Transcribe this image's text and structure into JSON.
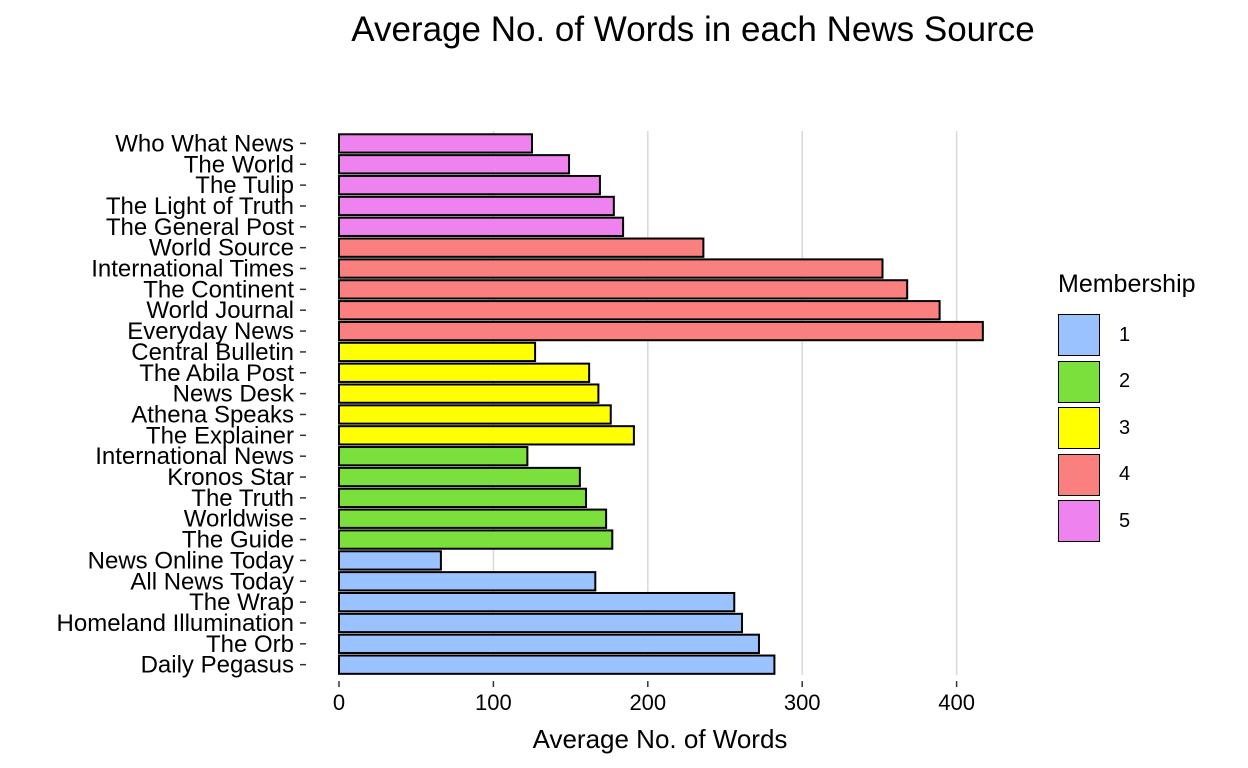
{
  "chart_data": {
    "type": "bar",
    "orientation": "horizontal",
    "title": "Average No. of Words in each News Source",
    "xlabel": "Average No. of Words",
    "ylabel": "",
    "xlim": [
      0,
      420
    ],
    "xticks": [
      "0",
      "100",
      "200",
      "300",
      "400"
    ],
    "grid": "vertical major lines",
    "legend": {
      "title": "Membership",
      "position": "right",
      "entries": [
        {
          "label": "1",
          "color": "#99c2ff"
        },
        {
          "label": "2",
          "color": "#7be03c"
        },
        {
          "label": "3",
          "color": "#ffff00"
        },
        {
          "label": "4",
          "color": "#fa7f7f"
        },
        {
          "label": "5",
          "color": "#ee82ee"
        }
      ]
    },
    "bars": [
      {
        "label": "Who What News",
        "value": 125,
        "group": "5"
      },
      {
        "label": "The World",
        "value": 149,
        "group": "5"
      },
      {
        "label": "The Tulip",
        "value": 169,
        "group": "5"
      },
      {
        "label": "The Light of Truth",
        "value": 178,
        "group": "5"
      },
      {
        "label": "The General Post",
        "value": 184,
        "group": "5"
      },
      {
        "label": "World Source",
        "value": 236,
        "group": "4"
      },
      {
        "label": "International Times",
        "value": 352,
        "group": "4"
      },
      {
        "label": "The Continent",
        "value": 368,
        "group": "4"
      },
      {
        "label": "World Journal",
        "value": 389,
        "group": "4"
      },
      {
        "label": "Everyday News",
        "value": 417,
        "group": "4"
      },
      {
        "label": "Central Bulletin",
        "value": 127,
        "group": "3"
      },
      {
        "label": "The Abila Post",
        "value": 162,
        "group": "3"
      },
      {
        "label": "News Desk",
        "value": 168,
        "group": "3"
      },
      {
        "label": "Athena Speaks",
        "value": 176,
        "group": "3"
      },
      {
        "label": "The Explainer",
        "value": 191,
        "group": "3"
      },
      {
        "label": "International News",
        "value": 122,
        "group": "2"
      },
      {
        "label": "Kronos Star",
        "value": 156,
        "group": "2"
      },
      {
        "label": "The Truth",
        "value": 160,
        "group": "2"
      },
      {
        "label": "Worldwise",
        "value": 173,
        "group": "2"
      },
      {
        "label": "The Guide",
        "value": 177,
        "group": "2"
      },
      {
        "label": "News Online Today",
        "value": 66,
        "group": "1"
      },
      {
        "label": "All News Today",
        "value": 166,
        "group": "1"
      },
      {
        "label": "The Wrap",
        "value": 256,
        "group": "1"
      },
      {
        "label": "Homeland Illumination",
        "value": 261,
        "group": "1"
      },
      {
        "label": "The Orb",
        "value": 272,
        "group": "1"
      },
      {
        "label": "Daily Pegasus",
        "value": 282,
        "group": "1"
      }
    ]
  }
}
